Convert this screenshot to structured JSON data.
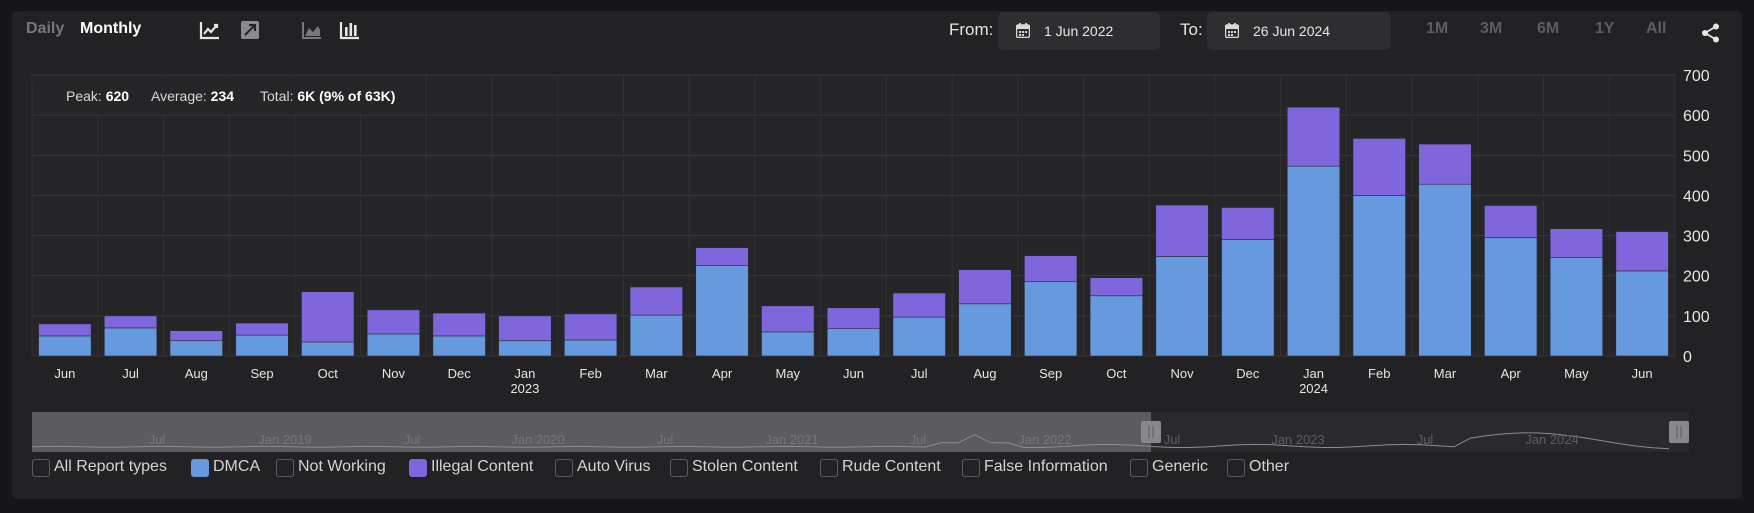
{
  "toolbar": {
    "daily_label": "Daily",
    "monthly_label": "Monthly",
    "from_label": "From:",
    "from_value": "1 Jun 2022",
    "to_label": "To:",
    "to_value": "26 Jun 2024",
    "ranges": [
      "1M",
      "3M",
      "6M",
      "1Y",
      "All"
    ]
  },
  "stats": {
    "peak_label": "Peak:",
    "peak_value": "620",
    "average_label": "Average:",
    "average_value": "234",
    "total_label": "Total:",
    "total_value": "6K (9% of 63K)"
  },
  "legend": [
    {
      "label": "All Report types",
      "checked": false,
      "color": ""
    },
    {
      "label": "DMCA",
      "checked": true,
      "color": "#6699dd"
    },
    {
      "label": "Not Working",
      "checked": false,
      "color": ""
    },
    {
      "label": "Illegal Content",
      "checked": true,
      "color": "#8066dd"
    },
    {
      "label": "Auto Virus",
      "checked": false,
      "color": ""
    },
    {
      "label": "Stolen Content",
      "checked": false,
      "color": ""
    },
    {
      "label": "Rude Content",
      "checked": false,
      "color": ""
    },
    {
      "label": "False Information",
      "checked": false,
      "color": ""
    },
    {
      "label": "Generic",
      "checked": false,
      "color": ""
    },
    {
      "label": "Other",
      "checked": false,
      "color": ""
    }
  ],
  "navigator": {
    "labels": [
      "Jul",
      "Jan 2019",
      "Jul",
      "Jan 2020",
      "Jul",
      "Jan 2021",
      "Jul",
      "Jan 2022",
      "Jul",
      "Jan 2023",
      "Jul",
      "Jan 2024"
    ]
  },
  "chart_data": {
    "type": "bar",
    "stacked": true,
    "categories": [
      "Jun",
      "Jul",
      "Aug",
      "Sep",
      "Oct",
      "Nov",
      "Dec",
      "Jan\n2023",
      "Feb",
      "Mar",
      "Apr",
      "May",
      "Jun",
      "Jul",
      "Aug",
      "Sep",
      "Oct",
      "Nov",
      "Dec",
      "Jan\n2024",
      "Feb",
      "Mar",
      "Apr",
      "May",
      "Jun"
    ],
    "series": [
      {
        "name": "DMCA",
        "color": "#6699dd",
        "values": [
          50,
          70,
          38,
          52,
          35,
          55,
          50,
          38,
          40,
          102,
          225,
          60,
          68,
          97,
          130,
          185,
          150,
          248,
          290,
          473,
          400,
          428,
          295,
          245,
          212
        ]
      },
      {
        "name": "Illegal Content",
        "color": "#8066dd",
        "values": [
          30,
          30,
          25,
          30,
          125,
          60,
          57,
          62,
          65,
          70,
          45,
          65,
          52,
          60,
          85,
          65,
          45,
          128,
          80,
          147,
          142,
          100,
          80,
          72,
          98
        ]
      }
    ],
    "ylim": [
      0,
      700
    ],
    "yticks": [
      0,
      100,
      200,
      300,
      400,
      500,
      600,
      700
    ],
    "grid": true,
    "y_axis_side": "right"
  }
}
